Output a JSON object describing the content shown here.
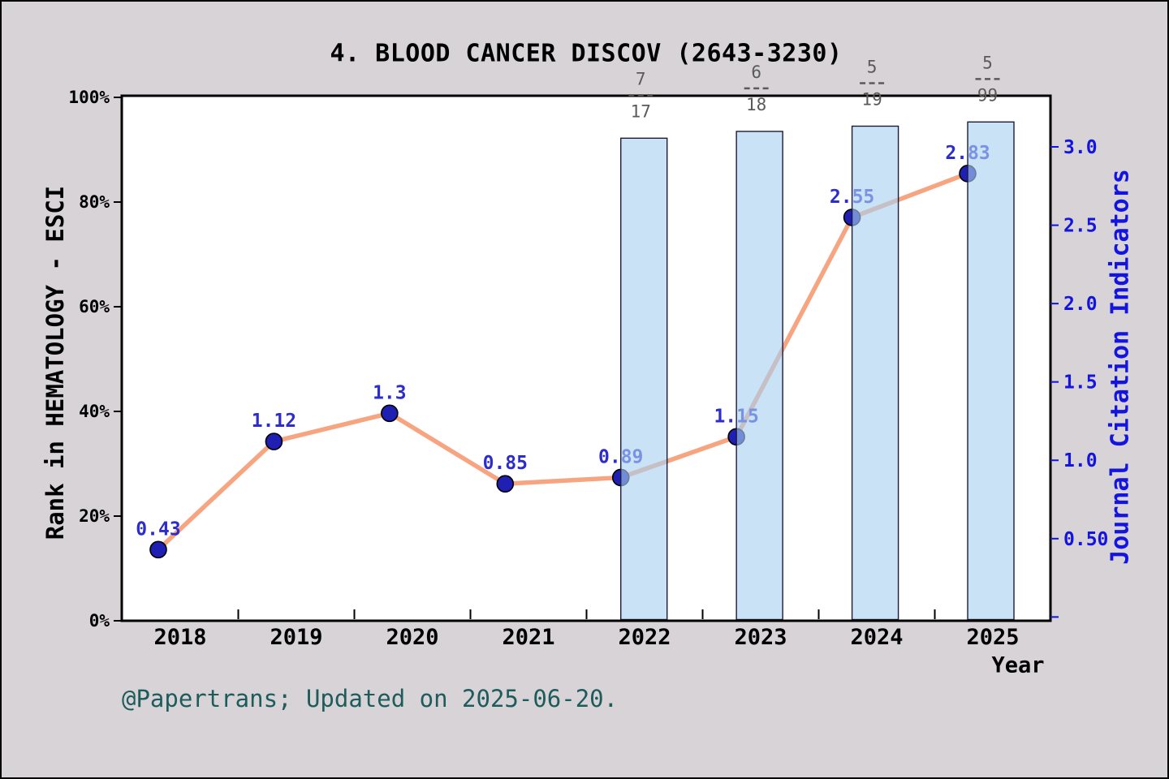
{
  "title": "4. BLOOD CANCER DISCOV (2643-3230)",
  "attribution": "@Papertrans; Updated on 2025-06-20.",
  "x_axis": {
    "label": "Year",
    "years": [
      "2018",
      "2019",
      "2020",
      "2021",
      "2022",
      "2023",
      "2024",
      "2025"
    ]
  },
  "left_axis": {
    "label": "Rank in HEMATOLOGY - ESCI",
    "ticks": [
      "0%",
      "20%",
      "40%",
      "60%",
      "80%",
      "100%"
    ]
  },
  "right_axis": {
    "label": "Journal Citation Indicators",
    "ticks": [
      "0.50",
      "1.0",
      "1.5",
      "2.0",
      "2.5",
      "3.0"
    ]
  },
  "chart_data": {
    "type": "line+bar",
    "title": "4. BLOOD CANCER DISCOV (2643-3230)",
    "x": [
      2018,
      2019,
      2020,
      2021,
      2022,
      2023,
      2024,
      2025
    ],
    "series": [
      {
        "name": "Journal Citation Indicators",
        "type": "line",
        "axis": "right",
        "values": [
          0.43,
          1.12,
          1.3,
          0.85,
          0.89,
          1.15,
          2.55,
          2.83
        ],
        "point_labels": [
          "0.43",
          "1.12",
          "1.3",
          "0.85",
          "0.89",
          "1.15",
          "2.55",
          "2.83"
        ]
      },
      {
        "name": "Rank in HEMATOLOGY - ESCI",
        "type": "bar",
        "axis": "left",
        "values_pct": [
          null,
          null,
          null,
          null,
          92.2,
          93.5,
          94.5,
          95.3
        ],
        "rank_fractions": [
          null,
          null,
          null,
          null,
          {
            "numerator": "7",
            "denominator": "17"
          },
          {
            "numerator": "6",
            "denominator": "18"
          },
          {
            "numerator": "5",
            "denominator": "19"
          },
          {
            "numerator": "5",
            "denominator": "99"
          }
        ]
      }
    ],
    "xlabel": "Year",
    "ylabel_left": "Rank in HEMATOLOGY - ESCI",
    "ylabel_right": "Journal Citation Indicators",
    "left_axis_range": [
      0,
      100
    ],
    "right_axis_range": [
      0,
      3.34
    ],
    "grid": false,
    "legend": "none"
  },
  "colors": {
    "figure_bg": "#d7d3d7",
    "plot_bg": "#ffffff",
    "line": "#f7a480",
    "marker_fill": "#1f1fb4",
    "marker_edge": "#000000",
    "bar_fill": "rgba(168,208,240,0.62)",
    "bar_edge": "#1c1c3a",
    "value_label": "#2d2dcd",
    "right_axis_color": "#1414e0",
    "left_axis_color": "#000000",
    "fraction_color": "#5a5a5a",
    "attribution_color": "#1e5c5c"
  }
}
